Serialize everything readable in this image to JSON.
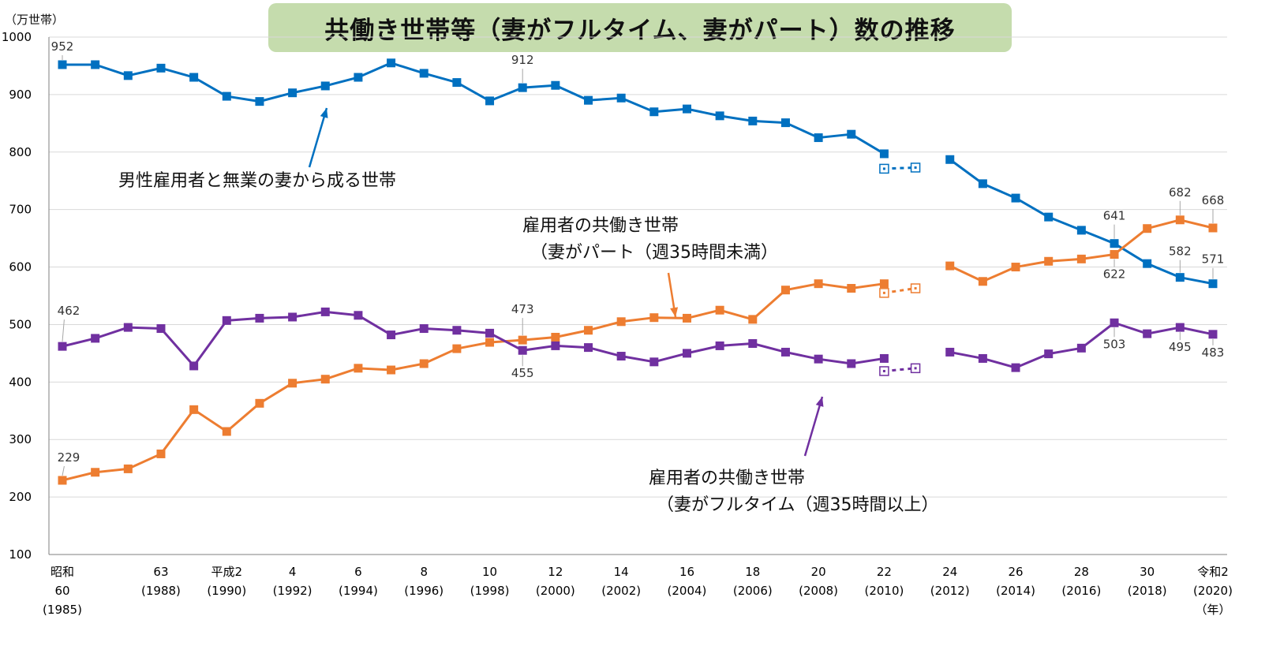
{
  "chart_data": {
    "type": "line",
    "title": "共働き世帯等（妻がフルタイム、妻がパート）数の推移",
    "unit": "（万世帯）",
    "ylim": [
      100,
      1000
    ],
    "yticks": [
      100,
      200,
      300,
      400,
      500,
      600,
      700,
      800,
      900,
      1000
    ],
    "grid": true,
    "legend": "none",
    "x": [
      1985,
      1986,
      1987,
      1988,
      1989,
      1990,
      1991,
      1992,
      1993,
      1994,
      1995,
      1996,
      1997,
      1998,
      1999,
      2000,
      2001,
      2002,
      2003,
      2004,
      2005,
      2006,
      2007,
      2008,
      2009,
      2010,
      2011,
      2012,
      2013,
      2014,
      2015,
      2016,
      2017,
      2018,
      2019,
      2020
    ],
    "xticks": [
      {
        "x": 1985,
        "lines": [
          "昭和",
          "60",
          "(1985)"
        ]
      },
      {
        "x": 1988,
        "lines": [
          "63",
          "(1988)"
        ]
      },
      {
        "x": 1990,
        "lines": [
          "平成2",
          "(1990)"
        ]
      },
      {
        "x": 1992,
        "lines": [
          "4",
          "(1992)"
        ]
      },
      {
        "x": 1994,
        "lines": [
          "6",
          "(1994)"
        ]
      },
      {
        "x": 1996,
        "lines": [
          "8",
          "(1996)"
        ]
      },
      {
        "x": 1998,
        "lines": [
          "10",
          "(1998)"
        ]
      },
      {
        "x": 2000,
        "lines": [
          "12",
          "(2000)"
        ]
      },
      {
        "x": 2002,
        "lines": [
          "14",
          "(2002)"
        ]
      },
      {
        "x": 2004,
        "lines": [
          "16",
          "(2004)"
        ]
      },
      {
        "x": 2006,
        "lines": [
          "18",
          "(2006)"
        ]
      },
      {
        "x": 2008,
        "lines": [
          "20",
          "(2008)"
        ]
      },
      {
        "x": 2010,
        "lines": [
          "22",
          "(2010)"
        ]
      },
      {
        "x": 2012,
        "lines": [
          "24",
          "(2012)"
        ]
      },
      {
        "x": 2014,
        "lines": [
          "26",
          "(2014)"
        ]
      },
      {
        "x": 2016,
        "lines": [
          "28",
          "(2016)"
        ]
      },
      {
        "x": 2018,
        "lines": [
          "30",
          "(2018)"
        ]
      },
      {
        "x": 2020,
        "lines": [
          "令和2",
          "(2020)",
          "（年）"
        ]
      }
    ],
    "series": [
      {
        "name": "男性雇用者と無業の妻から成る世帯",
        "color": "#0070c0",
        "values": [
          952,
          952,
          933,
          946,
          930,
          897,
          888,
          903,
          915,
          930,
          955,
          937,
          921,
          889,
          912,
          916,
          890,
          894,
          870,
          875,
          863,
          854,
          851,
          825,
          831,
          797,
          null,
          787,
          745,
          720,
          687,
          664,
          641,
          606,
          582,
          571
        ],
        "est_2010_2011": [
          771,
          773
        ],
        "labels": [
          {
            "x": 1985,
            "text": "952"
          },
          {
            "x": 1999,
            "text": "912"
          },
          {
            "x": 2017,
            "text": "641"
          },
          {
            "x": 2019,
            "text": "582"
          },
          {
            "x": 2020,
            "text": "571"
          }
        ]
      },
      {
        "name": "雇用者の共働き世帯（妻がパート（週35時間未満）",
        "color": "#ed7d31",
        "values": [
          229,
          243,
          249,
          275,
          352,
          314,
          363,
          398,
          405,
          424,
          421,
          432,
          458,
          469,
          473,
          478,
          490,
          505,
          512,
          511,
          525,
          509,
          560,
          571,
          563,
          571,
          null,
          602,
          575,
          600,
          610,
          614,
          622,
          667,
          682,
          668
        ],
        "est_2010_2011": [
          555,
          563
        ],
        "labels": [
          {
            "x": 1985,
            "text": "229"
          },
          {
            "x": 1999,
            "text": "473"
          },
          {
            "x": 2017,
            "text": "622"
          },
          {
            "x": 2019,
            "text": "682"
          },
          {
            "x": 2020,
            "text": "668"
          }
        ]
      },
      {
        "name": "雇用者の共働き世帯（妻がフルタイム（週35時間以上）",
        "color": "#7030a0",
        "values": [
          462,
          476,
          495,
          493,
          428,
          507,
          511,
          513,
          522,
          516,
          482,
          493,
          490,
          485,
          455,
          463,
          460,
          445,
          435,
          450,
          463,
          467,
          452,
          440,
          432,
          441,
          null,
          452,
          441,
          425,
          449,
          459,
          503,
          484,
          495,
          483
        ],
        "est_2010_2011": [
          419,
          424
        ],
        "labels": [
          {
            "x": 1985,
            "text": "462"
          },
          {
            "x": 1999,
            "text": "455"
          },
          {
            "x": 2017,
            "text": "503"
          },
          {
            "x": 2019,
            "text": "495"
          },
          {
            "x": 2020,
            "text": "483"
          }
        ]
      }
    ],
    "annotations": [
      {
        "lines": [
          "男性雇用者と無業の妻から成る世帯"
        ]
      },
      {
        "lines": [
          "雇用者の共働き世帯",
          "（妻がパート（週35時間未満）"
        ]
      },
      {
        "lines": [
          "雇用者の共働き世帯",
          "（妻がフルタイム（週35時間以上）"
        ]
      }
    ]
  }
}
